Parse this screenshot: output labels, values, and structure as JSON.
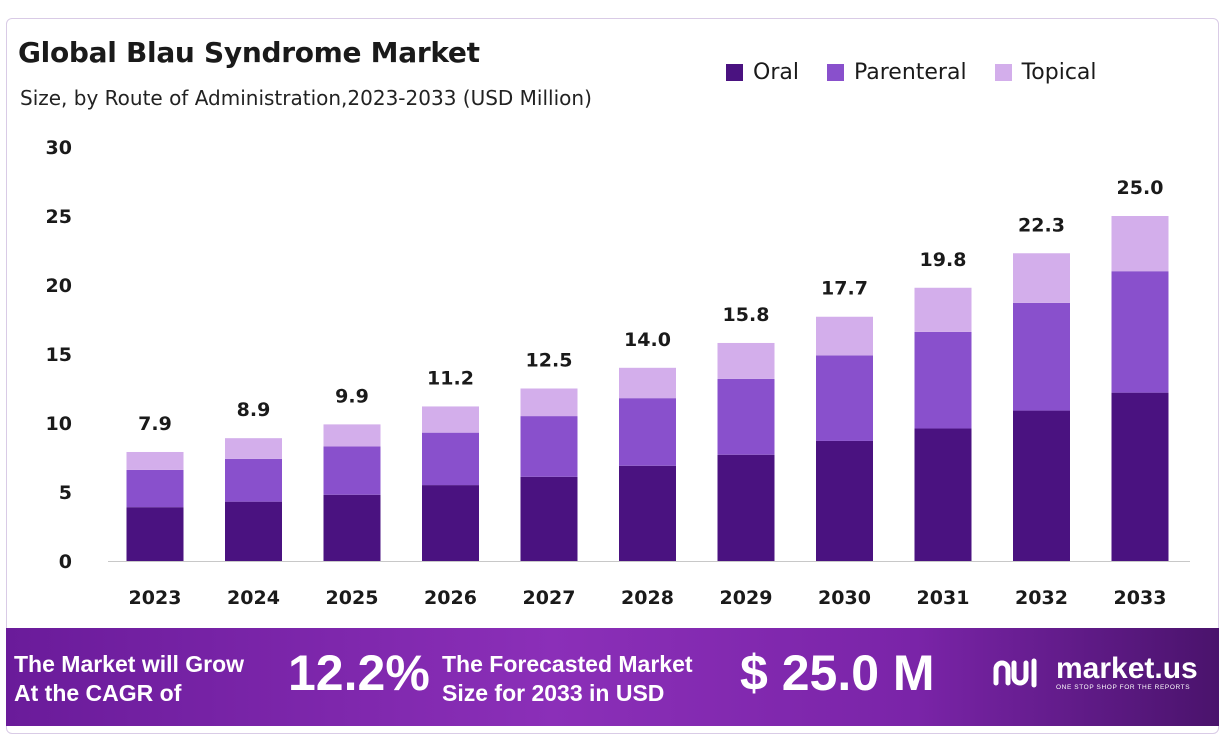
{
  "header": {
    "title": "Global Blau Syndrome Market",
    "subtitle": "Size, by Route of Administration,2023-2033 (USD Million)"
  },
  "legend": [
    {
      "label": "Oral",
      "color": "#4a1280"
    },
    {
      "label": "Parenteral",
      "color": "#8950cc"
    },
    {
      "label": "Topical",
      "color": "#d3aeeb"
    }
  ],
  "chart_data": {
    "type": "bar",
    "stacked": true,
    "categories": [
      "2023",
      "2024",
      "2025",
      "2026",
      "2027",
      "2028",
      "2029",
      "2030",
      "2031",
      "2032",
      "2033"
    ],
    "series": [
      {
        "name": "Oral",
        "color": "#4a1280",
        "values": [
          3.9,
          4.3,
          4.8,
          5.5,
          6.1,
          6.9,
          7.7,
          8.7,
          9.6,
          10.9,
          12.2
        ]
      },
      {
        "name": "Parenteral",
        "color": "#8950cc",
        "values": [
          2.7,
          3.1,
          3.5,
          3.8,
          4.4,
          4.9,
          5.5,
          6.2,
          7.0,
          7.8,
          8.8
        ]
      },
      {
        "name": "Topical",
        "color": "#d3aeeb",
        "values": [
          1.3,
          1.5,
          1.6,
          1.9,
          2.0,
          2.2,
          2.6,
          2.8,
          3.2,
          3.6,
          4.0
        ]
      }
    ],
    "totals": [
      "7.9",
      "8.9",
      "9.9",
      "11.2",
      "12.5",
      "14.0",
      "15.8",
      "17.7",
      "19.8",
      "22.3",
      "25.0"
    ],
    "yticks": [
      0,
      5,
      10,
      15,
      20,
      25,
      30
    ],
    "ylim": [
      0,
      30
    ],
    "grid": false,
    "legend_position": "top-right"
  },
  "footer": {
    "cagr_label_line1": "The Market will Grow",
    "cagr_label_line2": "At the CAGR of",
    "cagr_value": "12.2%",
    "size_label_line1": "The Forecasted Market",
    "size_label_line2": "Size for 2033 in USD",
    "size_value": "$ 25.0 M",
    "brand_name": "market.us",
    "brand_tagline": "ONE STOP SHOP FOR THE REPORTS"
  }
}
